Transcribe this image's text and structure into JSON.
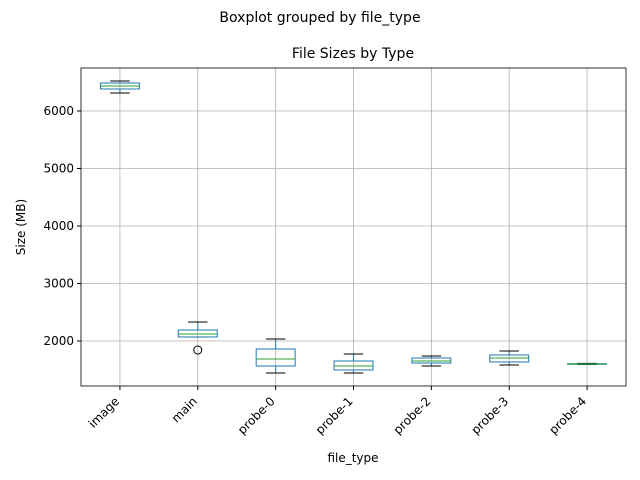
{
  "chart_data": {
    "type": "box",
    "suptitle": "Boxplot grouped by file_type",
    "title": "File Sizes by Type",
    "x_label": "file_type",
    "y_label": "Size (MB)",
    "categories": [
      "image",
      "main",
      "probe-0",
      "probe-1",
      "probe-2",
      "probe-3",
      "probe-4"
    ],
    "boxes": [
      {
        "whislo": 6313,
        "q1": 6383,
        "med": 6435,
        "q3": 6487,
        "whishi": 6522,
        "fliers": []
      },
      {
        "whislo": 2070,
        "q1": 2070,
        "med": 2122,
        "q3": 2191,
        "whishi": 2330,
        "fliers": [
          1843
        ]
      },
      {
        "whislo": 1443,
        "q1": 1565,
        "med": 1687,
        "q3": 1861,
        "whishi": 2035,
        "fliers": []
      },
      {
        "whislo": 1443,
        "q1": 1496,
        "med": 1565,
        "q3": 1652,
        "whishi": 1774,
        "fliers": []
      },
      {
        "whislo": 1565,
        "q1": 1617,
        "med": 1652,
        "q3": 1704,
        "whishi": 1739,
        "fliers": []
      },
      {
        "whislo": 1583,
        "q1": 1635,
        "med": 1704,
        "q3": 1757,
        "whishi": 1826,
        "fliers": []
      },
      {
        "whislo": 1590,
        "q1": 1595,
        "med": 1600,
        "q3": 1605,
        "whishi": 1610,
        "fliers": []
      }
    ],
    "box_color": "#1f77b4",
    "median_color": "#2ca02c",
    "whisker_color": "#000000",
    "ylim": [
      1217,
      6748
    ],
    "yticks": [
      2000,
      3000,
      4000,
      5000,
      6000
    ],
    "grid": true
  }
}
